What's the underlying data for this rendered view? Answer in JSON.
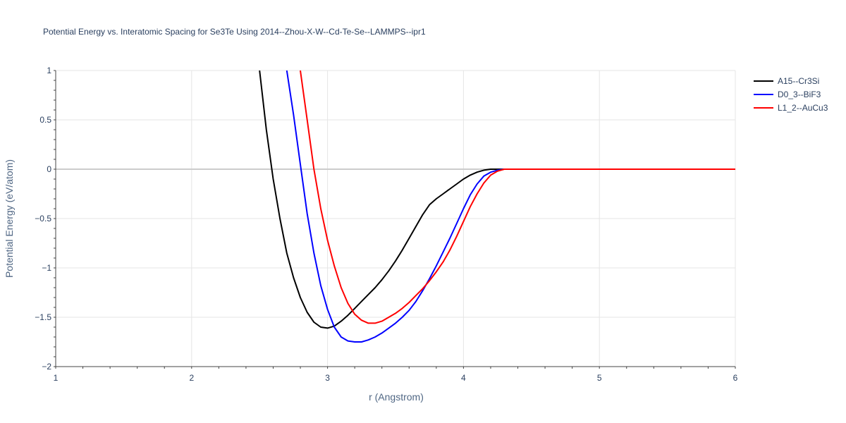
{
  "chart_data": {
    "type": "line",
    "title": "Potential Energy vs. Interatomic Spacing for Se3Te Using 2014--Zhou-X-W--Cd-Te-Se--LAMMPS--ipr1",
    "xlabel": "r (Angstrom)",
    "ylabel": "Potential Energy (eV/atom)",
    "xlim": [
      1,
      6
    ],
    "ylim": [
      -2,
      1
    ],
    "xticks": [
      1,
      2,
      3,
      4,
      5,
      6
    ],
    "yticks": [
      -2,
      -1.5,
      -1,
      -0.5,
      0,
      0.5,
      1
    ],
    "ytick_labels": [
      "−2",
      "−1.5",
      "−1",
      "−0.5",
      "0",
      "0.5",
      "1"
    ],
    "grid": true,
    "legend_position": "top-right",
    "series": [
      {
        "name": "A15--Cr3Si",
        "color": "#000000",
        "x": [
          2.5,
          2.55,
          2.6,
          2.65,
          2.7,
          2.75,
          2.8,
          2.85,
          2.9,
          2.95,
          3.0,
          3.05,
          3.1,
          3.15,
          3.2,
          3.25,
          3.3,
          3.35,
          3.4,
          3.45,
          3.5,
          3.55,
          3.6,
          3.65,
          3.7,
          3.75,
          3.8,
          3.85,
          3.9,
          3.95,
          4.0,
          4.05,
          4.1,
          4.15,
          4.2,
          4.25,
          4.3,
          4.35,
          4.4,
          4.5,
          5.0,
          5.5,
          6.0
        ],
        "y": [
          1.0,
          0.4,
          -0.1,
          -0.5,
          -0.85,
          -1.1,
          -1.3,
          -1.45,
          -1.55,
          -1.6,
          -1.61,
          -1.59,
          -1.54,
          -1.48,
          -1.41,
          -1.34,
          -1.27,
          -1.2,
          -1.12,
          -1.03,
          -0.93,
          -0.82,
          -0.7,
          -0.58,
          -0.46,
          -0.36,
          -0.3,
          -0.25,
          -0.2,
          -0.15,
          -0.1,
          -0.06,
          -0.03,
          -0.01,
          0.0,
          0.0,
          0.0,
          0.0,
          0.0,
          0.0,
          0.0,
          0.0,
          0.0
        ]
      },
      {
        "name": "D0_3--BiF3",
        "color": "#0000ff",
        "x": [
          2.7,
          2.75,
          2.8,
          2.85,
          2.9,
          2.95,
          3.0,
          3.05,
          3.1,
          3.15,
          3.2,
          3.25,
          3.3,
          3.35,
          3.4,
          3.45,
          3.5,
          3.55,
          3.6,
          3.65,
          3.7,
          3.75,
          3.8,
          3.85,
          3.9,
          3.95,
          4.0,
          4.05,
          4.1,
          4.15,
          4.2,
          4.25,
          4.3,
          4.35,
          4.4,
          4.5,
          5.0,
          5.5,
          6.0
        ],
        "y": [
          1.0,
          0.55,
          0.05,
          -0.45,
          -0.85,
          -1.18,
          -1.42,
          -1.6,
          -1.7,
          -1.74,
          -1.75,
          -1.75,
          -1.73,
          -1.7,
          -1.66,
          -1.61,
          -1.56,
          -1.5,
          -1.43,
          -1.34,
          -1.23,
          -1.11,
          -0.98,
          -0.84,
          -0.7,
          -0.55,
          -0.4,
          -0.26,
          -0.15,
          -0.07,
          -0.03,
          -0.01,
          0.0,
          0.0,
          0.0,
          0.0,
          0.0,
          0.0,
          0.0
        ]
      },
      {
        "name": "L1_2--AuCu3",
        "color": "#ff0000",
        "x": [
          2.8,
          2.85,
          2.9,
          2.95,
          3.0,
          3.05,
          3.1,
          3.15,
          3.2,
          3.25,
          3.3,
          3.35,
          3.4,
          3.45,
          3.5,
          3.55,
          3.6,
          3.65,
          3.7,
          3.75,
          3.8,
          3.85,
          3.9,
          3.95,
          4.0,
          4.05,
          4.1,
          4.15,
          4.2,
          4.25,
          4.3,
          4.35,
          4.4,
          4.5,
          5.0,
          5.5,
          6.0
        ],
        "y": [
          1.0,
          0.5,
          0.0,
          -0.4,
          -0.72,
          -0.98,
          -1.2,
          -1.36,
          -1.47,
          -1.53,
          -1.56,
          -1.56,
          -1.54,
          -1.5,
          -1.46,
          -1.41,
          -1.35,
          -1.28,
          -1.21,
          -1.13,
          -1.04,
          -0.94,
          -0.82,
          -0.68,
          -0.53,
          -0.38,
          -0.25,
          -0.14,
          -0.06,
          -0.02,
          0.0,
          0.0,
          0.0,
          0.0,
          0.0,
          0.0,
          0.0
        ]
      }
    ]
  }
}
